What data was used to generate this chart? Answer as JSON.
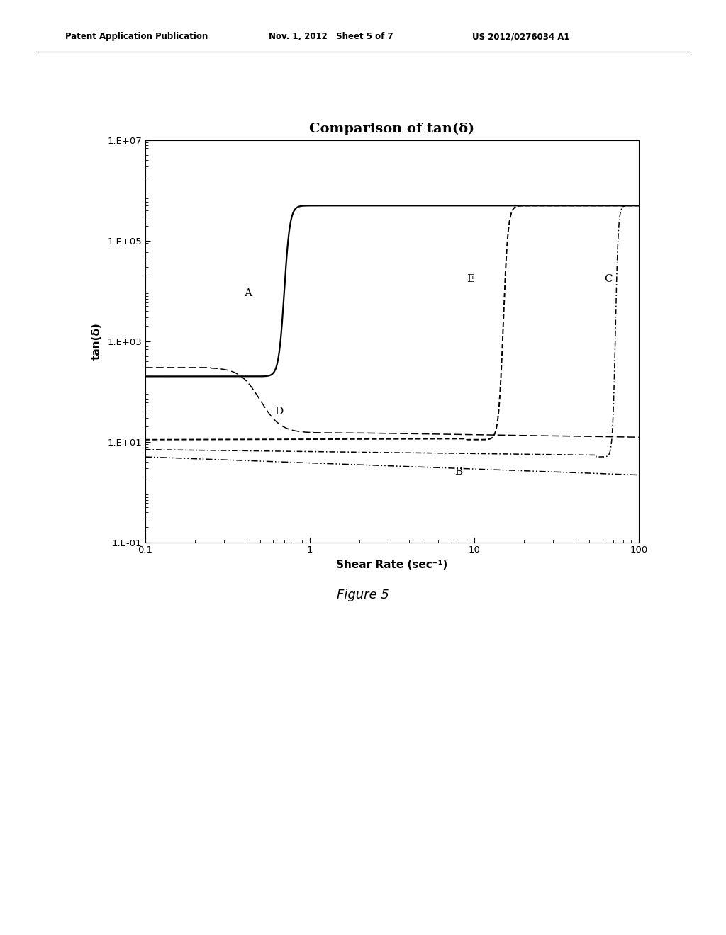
{
  "title": "Comparison of tan(δ)",
  "xlabel": "Shear Rate (sec⁻¹)",
  "ylabel": "tan(δ)",
  "xlim": [
    0.1,
    100
  ],
  "ylim": [
    0.1,
    10000000.0
  ],
  "yticks_labels": [
    "1.E-01",
    "1.E+01",
    "1.E+03",
    "1.E+05",
    "1.E+07"
  ],
  "yticks_values": [
    0.1,
    10,
    1000,
    100000,
    10000000.0
  ],
  "background_color": "#ffffff",
  "header_left": "Patent Application Publication",
  "header_mid": "Nov. 1, 2012   Sheet 5 of 7",
  "header_right": "US 2012/0276034 A1",
  "figure_caption": "Figure 5"
}
